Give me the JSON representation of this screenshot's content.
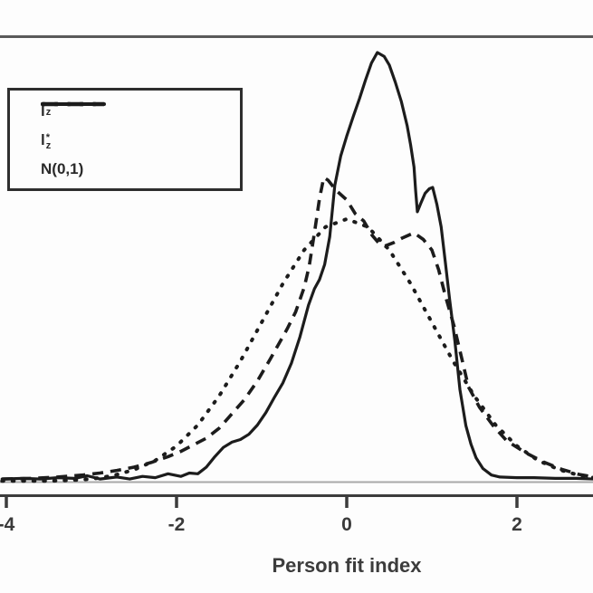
{
  "figure": {
    "background": "#fdfdfd",
    "colors": {
      "curve": "#1c1c1c",
      "axis_line": "#3c3c3c",
      "top_border": "#5a5a5a",
      "zero_line": "#a9a9a9",
      "legend_border": "#2e2e2e",
      "text": "#3a3a3a"
    }
  },
  "chart_data": {
    "type": "line",
    "title": "",
    "xlabel": "Person fit index",
    "ylabel": "",
    "grid": false,
    "legend_position": "top-left",
    "xlim": [
      -4.08,
      2.9
    ],
    "ylim": [
      0,
      0.677
    ],
    "x_ticks": [
      -4,
      -2,
      0,
      2
    ],
    "x_tick_labels": [
      "-4",
      "-2",
      "0",
      "2"
    ],
    "series": [
      {
        "name": "lz",
        "label": {
          "base": "l",
          "sup": "",
          "sub": "z"
        },
        "style": "solid",
        "points": [
          [
            -4.05,
            0.004
          ],
          [
            -3.8,
            0.005
          ],
          [
            -3.6,
            0.004
          ],
          [
            -3.4,
            0.006
          ],
          [
            -3.2,
            0.005
          ],
          [
            -3.05,
            0.009
          ],
          [
            -2.9,
            0.004
          ],
          [
            -2.7,
            0.007
          ],
          [
            -2.55,
            0.004
          ],
          [
            -2.4,
            0.008
          ],
          [
            -2.25,
            0.006
          ],
          [
            -2.1,
            0.012
          ],
          [
            -1.95,
            0.008
          ],
          [
            -1.85,
            0.013
          ],
          [
            -1.75,
            0.012
          ],
          [
            -1.65,
            0.022
          ],
          [
            -1.55,
            0.038
          ],
          [
            -1.45,
            0.052
          ],
          [
            -1.35,
            0.06
          ],
          [
            -1.25,
            0.064
          ],
          [
            -1.15,
            0.072
          ],
          [
            -1.05,
            0.086
          ],
          [
            -0.95,
            0.105
          ],
          [
            -0.85,
            0.128
          ],
          [
            -0.75,
            0.15
          ],
          [
            -0.65,
            0.18
          ],
          [
            -0.55,
            0.22
          ],
          [
            -0.45,
            0.268
          ],
          [
            -0.38,
            0.293
          ],
          [
            -0.32,
            0.307
          ],
          [
            -0.26,
            0.33
          ],
          [
            -0.2,
            0.372
          ],
          [
            -0.14,
            0.45
          ],
          [
            -0.07,
            0.495
          ],
          [
            0,
            0.525
          ],
          [
            0.08,
            0.556
          ],
          [
            0.15,
            0.582
          ],
          [
            0.22,
            0.61
          ],
          [
            0.29,
            0.636
          ],
          [
            0.36,
            0.652
          ],
          [
            0.44,
            0.646
          ],
          [
            0.5,
            0.633
          ],
          [
            0.57,
            0.607
          ],
          [
            0.64,
            0.578
          ],
          [
            0.71,
            0.541
          ],
          [
            0.75,
            0.512
          ],
          [
            0.79,
            0.478
          ],
          [
            0.81,
            0.442
          ],
          [
            0.83,
            0.41
          ],
          [
            0.87,
            0.423
          ],
          [
            0.92,
            0.438
          ],
          [
            0.97,
            0.445
          ],
          [
            1.01,
            0.447
          ],
          [
            1.06,
            0.421
          ],
          [
            1.11,
            0.387
          ],
          [
            1.16,
            0.332
          ],
          [
            1.21,
            0.276
          ],
          [
            1.27,
            0.214
          ],
          [
            1.33,
            0.14
          ],
          [
            1.4,
            0.085
          ],
          [
            1.46,
            0.057
          ],
          [
            1.52,
            0.036
          ],
          [
            1.6,
            0.02
          ],
          [
            1.7,
            0.01
          ],
          [
            1.8,
            0.007
          ],
          [
            2.0,
            0.006
          ],
          [
            2.2,
            0.006
          ],
          [
            2.45,
            0.005
          ],
          [
            2.7,
            0.005
          ],
          [
            2.9,
            0.004
          ]
        ]
      },
      {
        "name": "lz-star",
        "label": {
          "base": "l",
          "sup": "*",
          "sub": "z"
        },
        "style": "dashed",
        "points": [
          [
            -4.05,
            0.004
          ],
          [
            -3.7,
            0.005
          ],
          [
            -3.4,
            0.007
          ],
          [
            -3.1,
            0.01
          ],
          [
            -2.9,
            0.013
          ],
          [
            -2.7,
            0.017
          ],
          [
            -2.5,
            0.022
          ],
          [
            -2.3,
            0.029
          ],
          [
            -2.1,
            0.038
          ],
          [
            -1.95,
            0.046
          ],
          [
            -1.8,
            0.056
          ],
          [
            -1.65,
            0.066
          ],
          [
            -1.5,
            0.081
          ],
          [
            -1.35,
            0.103
          ],
          [
            -1.2,
            0.125
          ],
          [
            -1.05,
            0.153
          ],
          [
            -0.9,
            0.186
          ],
          [
            -0.8,
            0.209
          ],
          [
            -0.7,
            0.232
          ],
          [
            -0.6,
            0.258
          ],
          [
            -0.5,
            0.295
          ],
          [
            -0.44,
            0.328
          ],
          [
            -0.38,
            0.378
          ],
          [
            -0.32,
            0.43
          ],
          [
            -0.27,
            0.462
          ],
          [
            -0.22,
            0.458
          ],
          [
            -0.12,
            0.442
          ],
          [
            0,
            0.428
          ],
          [
            0.1,
            0.407
          ],
          [
            0.2,
            0.396
          ],
          [
            0.3,
            0.374
          ],
          [
            0.38,
            0.362
          ],
          [
            0.45,
            0.358
          ],
          [
            0.55,
            0.363
          ],
          [
            0.65,
            0.37
          ],
          [
            0.79,
            0.378
          ],
          [
            0.9,
            0.368
          ],
          [
            1.0,
            0.352
          ],
          [
            1.08,
            0.322
          ],
          [
            1.16,
            0.282
          ],
          [
            1.26,
            0.237
          ],
          [
            1.35,
            0.188
          ],
          [
            1.43,
            0.144
          ],
          [
            1.56,
            0.113
          ],
          [
            1.72,
            0.085
          ],
          [
            1.88,
            0.062
          ],
          [
            2.1,
            0.044
          ],
          [
            2.31,
            0.03
          ],
          [
            2.52,
            0.019
          ],
          [
            2.73,
            0.011
          ],
          [
            2.9,
            0.007
          ]
        ]
      },
      {
        "name": "N(0,1)",
        "label": {
          "base": "N(0,1)",
          "sup": "",
          "sub": ""
        },
        "style": "dotted",
        "points": [
          [
            -4.05,
            0.001
          ],
          [
            -3.75,
            0.001
          ],
          [
            -3.5,
            0.001
          ],
          [
            -3.25,
            0.002
          ],
          [
            -3,
            0.004
          ],
          [
            -2.75,
            0.009
          ],
          [
            -2.5,
            0.018
          ],
          [
            -2.25,
            0.032
          ],
          [
            -2,
            0.054
          ],
          [
            -1.75,
            0.086
          ],
          [
            -1.5,
            0.13
          ],
          [
            -1.25,
            0.183
          ],
          [
            -1,
            0.242
          ],
          [
            -0.75,
            0.301
          ],
          [
            -0.5,
            0.352
          ],
          [
            -0.25,
            0.387
          ],
          [
            0,
            0.399
          ],
          [
            0.25,
            0.387
          ],
          [
            0.5,
            0.352
          ],
          [
            0.75,
            0.301
          ],
          [
            1,
            0.242
          ],
          [
            1.25,
            0.183
          ],
          [
            1.5,
            0.13
          ],
          [
            1.75,
            0.086
          ],
          [
            2,
            0.054
          ],
          [
            2.25,
            0.032
          ],
          [
            2.5,
            0.018
          ],
          [
            2.75,
            0.009
          ],
          [
            2.9,
            0.006
          ]
        ]
      }
    ]
  }
}
